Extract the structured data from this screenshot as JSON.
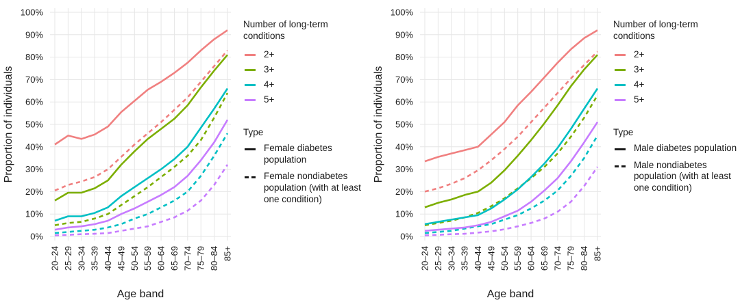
{
  "chart_data": [
    {
      "type": "line",
      "xlabel": "Age band",
      "ylabel": "Proportion of individuals",
      "categories": [
        "20–24",
        "25–29",
        "30–34",
        "35–39",
        "40–44",
        "45–49",
        "50–54",
        "55–59",
        "60–64",
        "65–69",
        "70–74",
        "75–79",
        "80–84",
        "85+"
      ],
      "yticks": [
        "0%",
        "10%",
        "20%",
        "30%",
        "40%",
        "50%",
        "60%",
        "70%",
        "80%",
        "90%",
        "100%"
      ],
      "ylim": [
        0,
        100
      ],
      "grid": "on",
      "legend": {
        "color_title": "Number of long-term conditions",
        "color_entries": [
          {
            "label": "2+",
            "color": "#f08080"
          },
          {
            "label": "3+",
            "color": "#7cae00"
          },
          {
            "label": "4+",
            "color": "#00bfc4"
          },
          {
            "label": "5+",
            "color": "#c77cff"
          }
        ],
        "type_title": "Type",
        "type_entries": [
          {
            "label": "Female diabetes population",
            "style": "solid"
          },
          {
            "label": "Female nondiabetes population (with at least one condition)",
            "style": "dashed"
          }
        ]
      },
      "series": [
        {
          "group": "2+",
          "type": "diabetes",
          "color": "#f08080",
          "dash": false,
          "values": [
            41,
            45,
            43.5,
            45.5,
            49,
            55.5,
            60.5,
            65.5,
            69,
            73,
            77.5,
            83,
            88,
            92
          ]
        },
        {
          "group": "3+",
          "type": "diabetes",
          "color": "#7cae00",
          "dash": false,
          "values": [
            16,
            19.5,
            19.5,
            21.5,
            25,
            32,
            38,
            43.5,
            48,
            52.5,
            58.5,
            66.5,
            74,
            81
          ]
        },
        {
          "group": "4+",
          "type": "diabetes",
          "color": "#00bfc4",
          "dash": false,
          "values": [
            7,
            9,
            9,
            10.5,
            13,
            18,
            22,
            26,
            30,
            34.5,
            40,
            48.5,
            57,
            66
          ]
        },
        {
          "group": "5+",
          "type": "diabetes",
          "color": "#c77cff",
          "dash": false,
          "values": [
            3,
            4,
            4.5,
            5.5,
            7,
            10,
            12.5,
            15.5,
            18.5,
            22,
            27,
            34,
            42,
            52
          ]
        },
        {
          "group": "2+",
          "type": "nondiabetes",
          "color": "#f08080",
          "dash": true,
          "values": [
            20.5,
            23,
            24.5,
            26.5,
            30,
            35.5,
            41,
            46,
            51,
            56.5,
            62,
            69,
            76,
            83
          ]
        },
        {
          "group": "3+",
          "type": "nondiabetes",
          "color": "#7cae00",
          "dash": true,
          "values": [
            5,
            6,
            6.5,
            8,
            10,
            14,
            18,
            22,
            26.5,
            31,
            36,
            43,
            53,
            64
          ]
        },
        {
          "group": "4+",
          "type": "nondiabetes",
          "color": "#00bfc4",
          "dash": true,
          "values": [
            1.5,
            2,
            2.5,
            3,
            4,
            5.5,
            8,
            10,
            13,
            16,
            20,
            27,
            36,
            46
          ]
        },
        {
          "group": "5+",
          "type": "nondiabetes",
          "color": "#c77cff",
          "dash": true,
          "values": [
            0.5,
            0.7,
            1,
            1.2,
            1.5,
            2.5,
            3.5,
            4.5,
            6.5,
            8.5,
            11.5,
            16,
            23,
            32
          ]
        }
      ]
    },
    {
      "type": "line",
      "xlabel": "Age band",
      "ylabel": "Proportion of individuals",
      "categories": [
        "20–24",
        "25–29",
        "30–34",
        "35–39",
        "40–44",
        "45–49",
        "50–54",
        "55–59",
        "60–64",
        "65–69",
        "70–74",
        "75–79",
        "80–84",
        "85+"
      ],
      "yticks": [
        "0%",
        "10%",
        "20%",
        "30%",
        "40%",
        "50%",
        "60%",
        "70%",
        "80%",
        "90%",
        "100%"
      ],
      "ylim": [
        0,
        100
      ],
      "grid": "on",
      "legend": {
        "color_title": "Number of long-term conditions",
        "color_entries": [
          {
            "label": "2+",
            "color": "#f08080"
          },
          {
            "label": "3+",
            "color": "#7cae00"
          },
          {
            "label": "4+",
            "color": "#00bfc4"
          },
          {
            "label": "5+",
            "color": "#c77cff"
          }
        ],
        "type_title": "Type",
        "type_entries": [
          {
            "label": "Male diabetes population",
            "style": "solid"
          },
          {
            "label": "Male nondiabetes population (with at least one condition)",
            "style": "dashed"
          }
        ]
      },
      "series": [
        {
          "group": "2+",
          "type": "diabetes",
          "color": "#f08080",
          "dash": false,
          "values": [
            33.5,
            35.5,
            37,
            38.5,
            40,
            45.5,
            51,
            58.5,
            64.5,
            71,
            77.5,
            83.5,
            88.5,
            92
          ]
        },
        {
          "group": "3+",
          "type": "diabetes",
          "color": "#7cae00",
          "dash": false,
          "values": [
            13,
            15,
            16.5,
            18.5,
            20,
            24,
            29.5,
            36,
            43,
            50.5,
            58.5,
            67,
            74.5,
            81
          ]
        },
        {
          "group": "4+",
          "type": "diabetes",
          "color": "#00bfc4",
          "dash": false,
          "values": [
            5.5,
            6.5,
            7.5,
            8.5,
            9.5,
            12.5,
            16.5,
            21,
            26.5,
            32.5,
            39.5,
            48,
            57,
            66
          ]
        },
        {
          "group": "5+",
          "type": "diabetes",
          "color": "#c77cff",
          "dash": false,
          "values": [
            2.5,
            3,
            3.5,
            4,
            5,
            6.5,
            9,
            11.5,
            15.5,
            20.5,
            26,
            33.5,
            42,
            51
          ]
        },
        {
          "group": "2+",
          "type": "nondiabetes",
          "color": "#f08080",
          "dash": true,
          "values": [
            20,
            21.5,
            23.5,
            26,
            29.5,
            34,
            39,
            44.5,
            51,
            57.5,
            64,
            70.5,
            76.5,
            82.5
          ]
        },
        {
          "group": "3+",
          "type": "nondiabetes",
          "color": "#7cae00",
          "dash": true,
          "values": [
            5,
            6,
            7,
            8.5,
            10.5,
            13.5,
            17,
            21.5,
            26,
            31,
            37,
            44.5,
            53,
            63
          ]
        },
        {
          "group": "4+",
          "type": "nondiabetes",
          "color": "#00bfc4",
          "dash": true,
          "values": [
            1.5,
            2,
            2.5,
            3.5,
            4.5,
            5.5,
            7.5,
            9.5,
            12.5,
            16,
            20.5,
            27,
            35,
            45
          ]
        },
        {
          "group": "5+",
          "type": "nondiabetes",
          "color": "#c77cff",
          "dash": true,
          "values": [
            0.5,
            0.7,
            1,
            1.2,
            1.7,
            2.3,
            3.2,
            4.5,
            6,
            8,
            11,
            15.5,
            22.5,
            31
          ]
        }
      ]
    }
  ]
}
